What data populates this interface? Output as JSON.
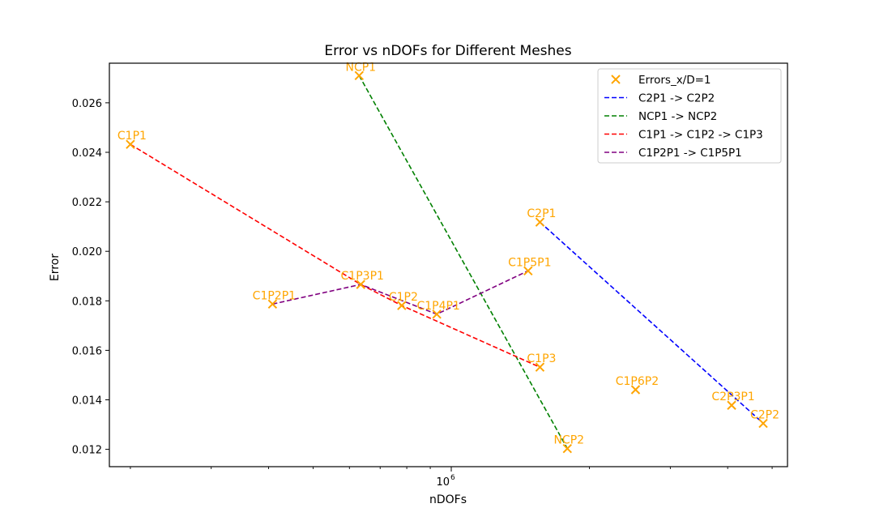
{
  "chart_data": {
    "type": "scatter",
    "title": "Error vs nDOFs for Different Meshes",
    "xlabel": "nDOFs",
    "ylabel": "Error",
    "xscale": "log",
    "xlim": [
      180000,
      5400000
    ],
    "ylim": [
      0.0113,
      0.0276
    ],
    "y_ticks": [
      0.012,
      0.014,
      0.016,
      0.018,
      0.02,
      0.022,
      0.024,
      0.026
    ],
    "y_tick_labels": [
      "0.012",
      "0.014",
      "0.016",
      "0.018",
      "0.020",
      "0.022",
      "0.024",
      "0.026"
    ],
    "x_major_ticks": [
      1000000
    ],
    "x_major_tick_label_base": "10",
    "x_major_tick_label_exp": "6",
    "x_minor_ticks": [
      200000,
      300000,
      400000,
      500000,
      600000,
      700000,
      800000,
      900000,
      2000000,
      3000000,
      4000000,
      5000000
    ],
    "grid": false,
    "legend_position": "top-right",
    "colors": {
      "points": "#ffa500",
      "C2P1 -> C2P2": "#0000ff",
      "NCP1 -> NCP2": "#008000",
      "C1P1 -> C1P2 -> C1P3": "#ff0000",
      "C1P2P1 -> C1P5P1": "#800080"
    },
    "points": {
      "name": "Errors_x/D=1",
      "data": [
        {
          "label": "C1P1",
          "x": 200000,
          "y": 0.02432
        },
        {
          "label": "C1P2P1",
          "x": 408000,
          "y": 0.01787
        },
        {
          "label": "C1P3P1",
          "x": 635000,
          "y": 0.01866
        },
        {
          "label": "C1P2",
          "x": 780000,
          "y": 0.01781
        },
        {
          "label": "C1P4P1",
          "x": 930000,
          "y": 0.01746
        },
        {
          "label": "C1P5P1",
          "x": 1470000,
          "y": 0.01921
        },
        {
          "label": "C1P3",
          "x": 1560000,
          "y": 0.01532
        },
        {
          "label": "NCP1",
          "x": 630000,
          "y": 0.0271
        },
        {
          "label": "NCP2",
          "x": 1790000,
          "y": 0.01203
        },
        {
          "label": "C2P1",
          "x": 1560000,
          "y": 0.02118
        },
        {
          "label": "C1P6P2",
          "x": 2520000,
          "y": 0.01441
        },
        {
          "label": "C2P3P1",
          "x": 4080000,
          "y": 0.01378
        },
        {
          "label": "C2P2",
          "x": 4780000,
          "y": 0.01305
        }
      ]
    },
    "series": [
      {
        "name": "C2P1 -> C2P2",
        "points": [
          "C2P1",
          "C2P2"
        ]
      },
      {
        "name": "NCP1 -> NCP2",
        "points": [
          "NCP1",
          "NCP2"
        ]
      },
      {
        "name": "C1P1 -> C1P2 -> C1P3",
        "points": [
          "C1P1",
          "C1P3P1",
          "C1P2",
          "C1P3"
        ]
      },
      {
        "name": "C1P2P1 -> C1P5P1",
        "points": [
          "C1P2P1",
          "C1P3P1",
          "C1P4P1",
          "C1P5P1"
        ]
      }
    ]
  }
}
